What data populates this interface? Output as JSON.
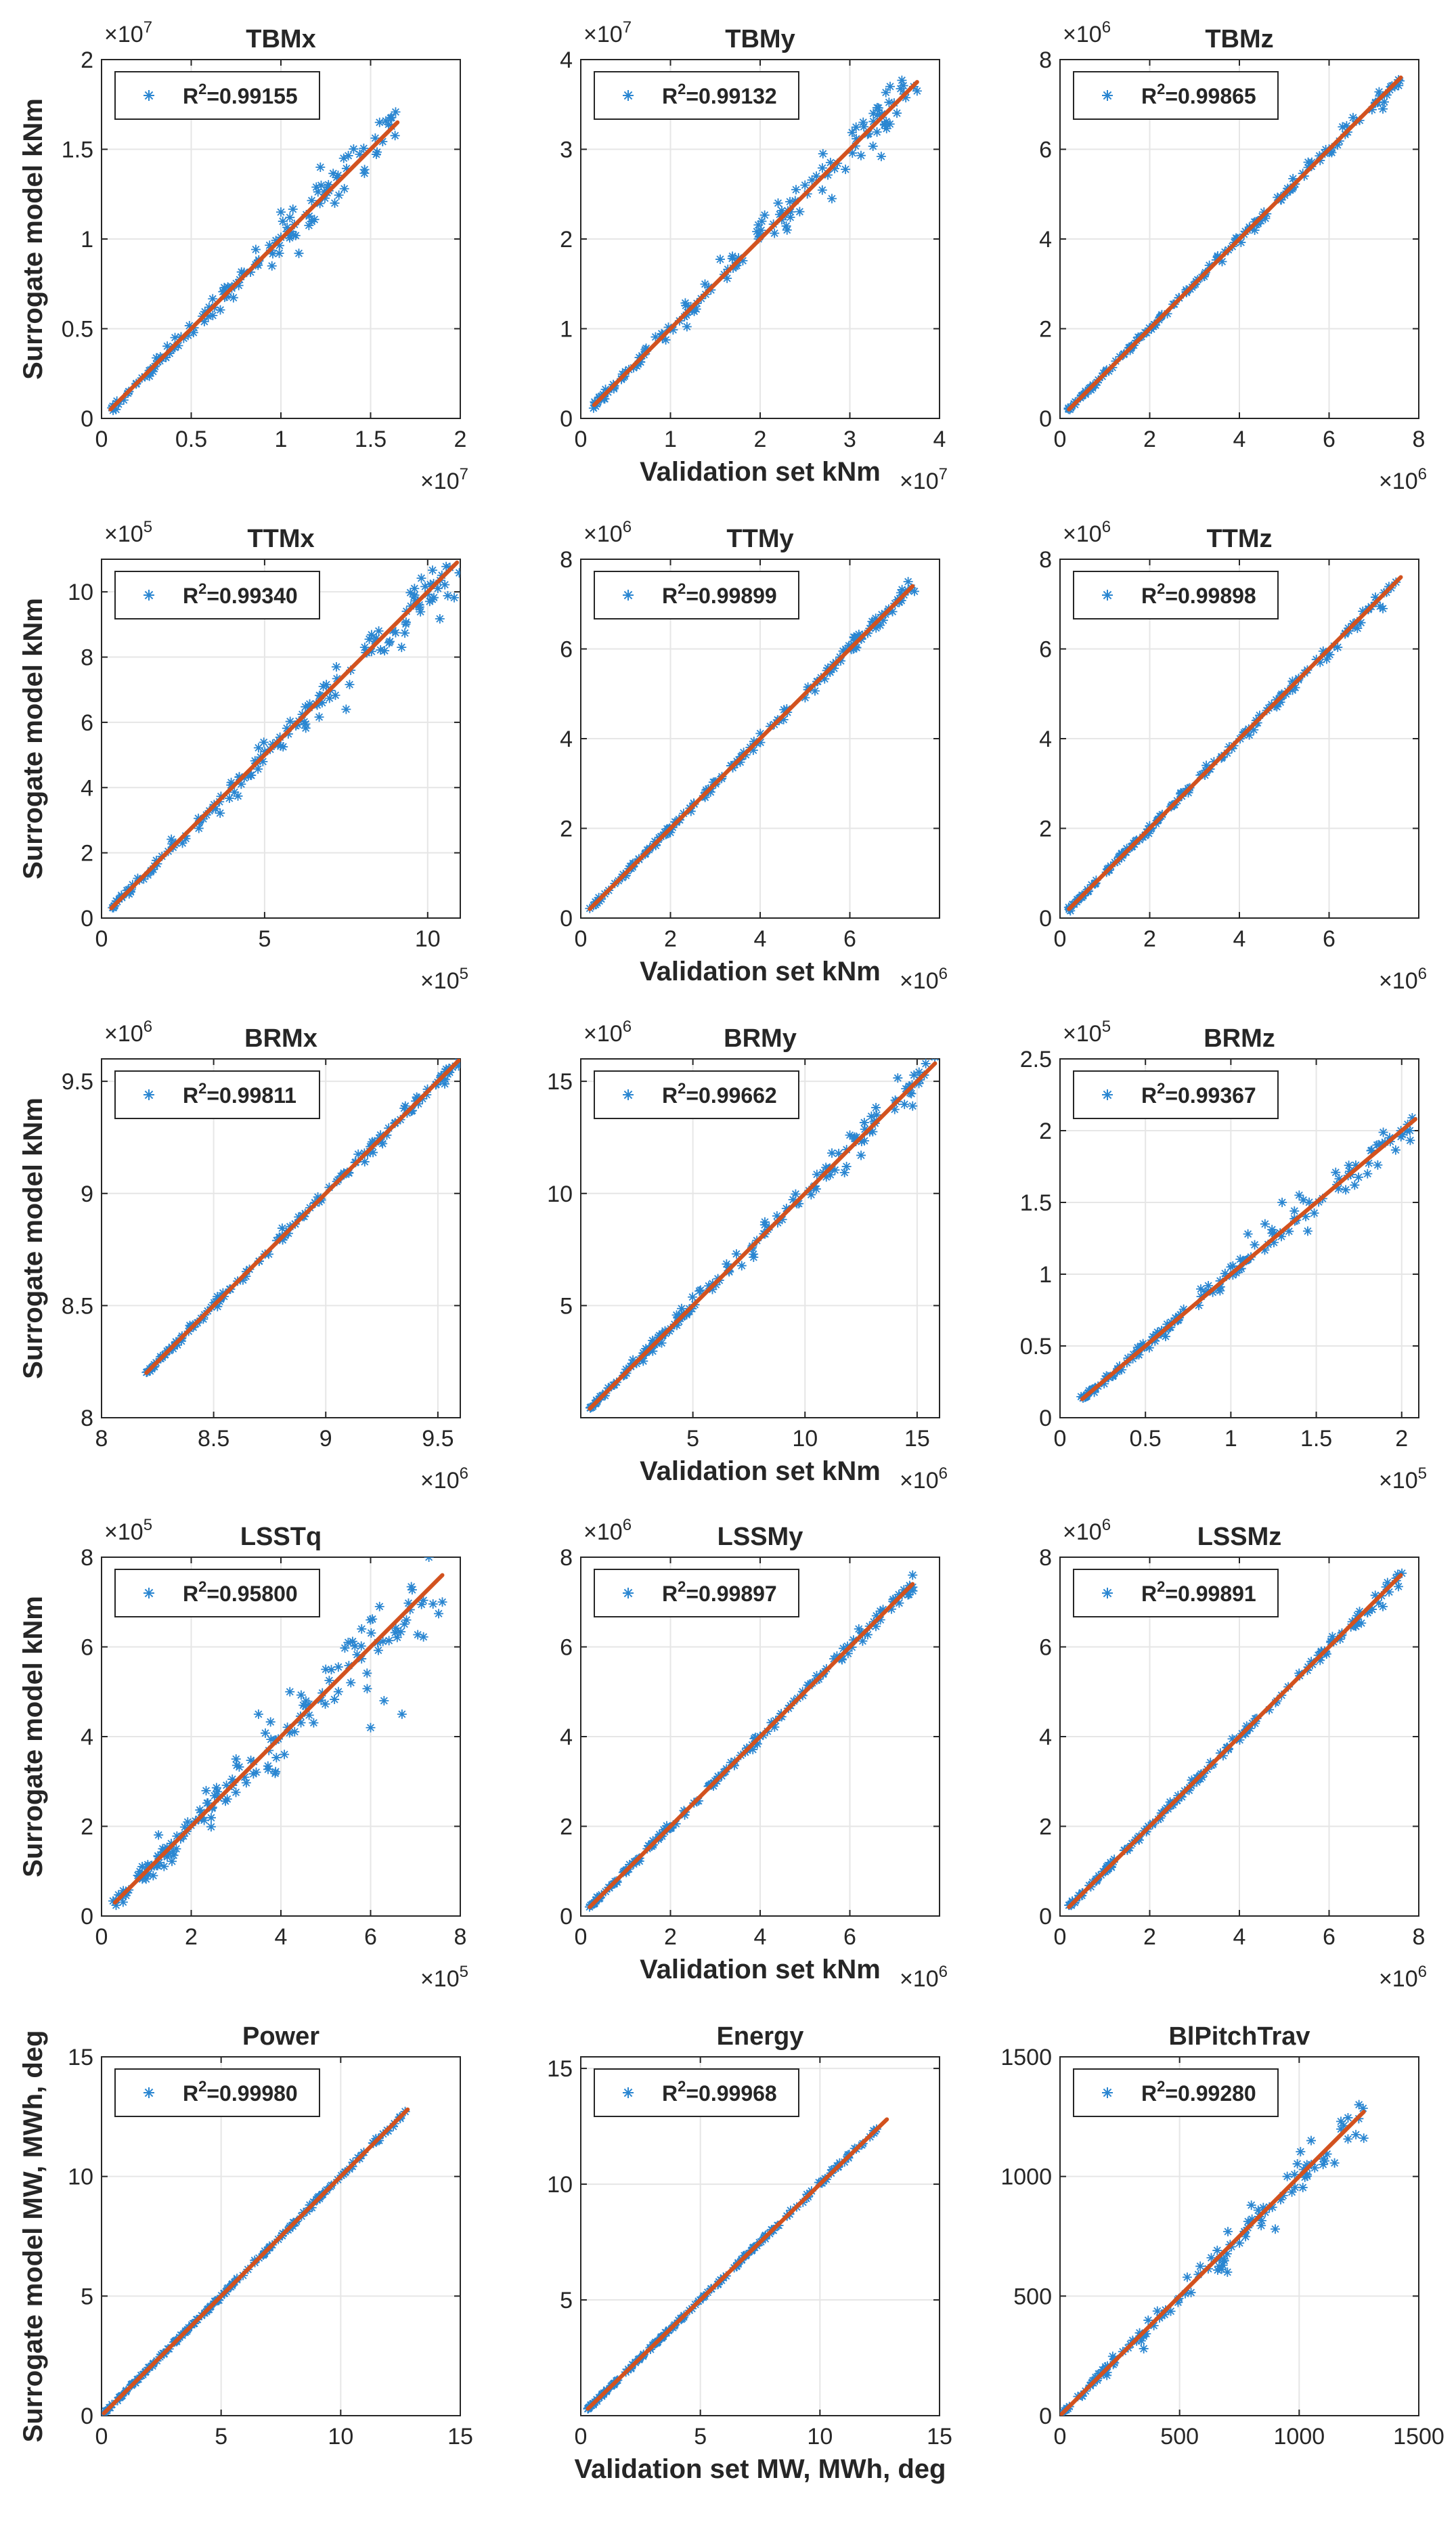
{
  "figure": {
    "description_labels": true
  },
  "colors": {
    "points": "#2a86d1",
    "fit_line": "#d2521f",
    "grid": "#e6e6e6",
    "axes": "#262626"
  },
  "chart_data": [
    {
      "type": "scatter",
      "title": "TBMx",
      "ylabel": "Surrogate model kNm",
      "xlabel": "",
      "xlim": [
        0,
        2
      ],
      "ylim": [
        0,
        2
      ],
      "xticks": [
        0,
        0.5,
        1,
        1.5,
        2
      ],
      "yticks": [
        0,
        0.5,
        1,
        1.5,
        2
      ],
      "xtick_labels": [
        "0",
        "0.5",
        "1",
        "1.5",
        "2"
      ],
      "ytick_labels": [
        "0",
        "0.5",
        "1",
        "1.5",
        "2"
      ],
      "x_exponent": "7",
      "y_exponent": "7",
      "legend": "R",
      "legend_sup": "2",
      "legend_value": "=0.99155",
      "fit": [
        0.05,
        1.65
      ],
      "samples": 130,
      "spread_low": 0.012,
      "spread_high": 0.06,
      "outliers": [
        [
          1.0,
          1.15
        ],
        [
          1.05,
          1.12
        ],
        [
          1.22,
          1.4
        ],
        [
          1.35,
          1.45
        ],
        [
          1.55,
          1.65
        ],
        [
          0.95,
          0.85
        ],
        [
          1.1,
          0.92
        ],
        [
          1.3,
          1.2
        ]
      ]
    },
    {
      "type": "scatter",
      "title": "TBMy",
      "ylabel": "",
      "xlabel": "Validation set kNm",
      "xlim": [
        0,
        4
      ],
      "ylim": [
        0,
        4
      ],
      "xticks": [
        0,
        1,
        2,
        3,
        4
      ],
      "yticks": [
        0,
        1,
        2,
        3,
        4
      ],
      "xtick_labels": [
        "0",
        "1",
        "2",
        "3",
        "4"
      ],
      "ytick_labels": [
        "0",
        "1",
        "2",
        "3",
        "4"
      ],
      "x_exponent": "7",
      "y_exponent": "7",
      "legend": "R",
      "legend_sup": "2",
      "legend_value": "=0.99132",
      "fit": [
        0.15,
        3.75
      ],
      "samples": 140,
      "spread_low": 0.015,
      "spread_high": 0.12,
      "outliers": [
        [
          2.3,
          2.1
        ],
        [
          2.4,
          2.55
        ],
        [
          2.8,
          2.45
        ],
        [
          2.7,
          2.95
        ],
        [
          3.35,
          2.92
        ],
        [
          3.75,
          3.65
        ],
        [
          2.2,
          2.4
        ],
        [
          2.5,
          2.6
        ]
      ]
    },
    {
      "type": "scatter",
      "title": "TBMz",
      "ylabel": "",
      "xlabel": "",
      "xlim": [
        0,
        8
      ],
      "ylim": [
        0,
        8
      ],
      "xticks": [
        0,
        2,
        4,
        6,
        8
      ],
      "yticks": [
        0,
        2,
        4,
        6,
        8
      ],
      "xtick_labels": [
        "0",
        "2",
        "4",
        "6",
        "8"
      ],
      "ytick_labels": [
        "0",
        "2",
        "4",
        "6",
        "8"
      ],
      "x_exponent": "6",
      "y_exponent": "6",
      "legend": "R",
      "legend_sup": "2",
      "legend_value": "=0.99865",
      "fit": [
        0.2,
        7.6
      ],
      "samples": 160,
      "spread_low": 0.02,
      "spread_high": 0.08,
      "outliers": [
        [
          7.2,
          6.9
        ],
        [
          5.8,
          5.75
        ],
        [
          6.3,
          6.5
        ]
      ]
    },
    {
      "type": "scatter",
      "title": "TTMx",
      "ylabel": "Surrogate model kNm",
      "xlabel": "",
      "xlim": [
        0,
        11
      ],
      "ylim": [
        0,
        11
      ],
      "xticks": [
        0,
        5,
        10
      ],
      "yticks": [
        0,
        2,
        4,
        6,
        8,
        10
      ],
      "xtick_labels": [
        "0",
        "5",
        "10"
      ],
      "ytick_labels": [
        "0",
        "2",
        "4",
        "6",
        "8",
        "10"
      ],
      "x_exponent": "5",
      "y_exponent": "5",
      "legend": "R",
      "legend_sup": "2",
      "legend_value": "=0.99340",
      "fit": [
        0.3,
        10.9
      ],
      "samples": 150,
      "spread_low": 0.05,
      "spread_high": 0.35,
      "outliers": [
        [
          9.2,
          8.3
        ],
        [
          7.2,
          7.7
        ],
        [
          8.5,
          8.8
        ],
        [
          7.5,
          6.4
        ],
        [
          9.6,
          9.9
        ],
        [
          6.8,
          7.1
        ]
      ]
    },
    {
      "type": "scatter",
      "title": "TTMy",
      "ylabel": "",
      "xlabel": "Validation set kNm",
      "xlim": [
        0,
        8
      ],
      "ylim": [
        0,
        8
      ],
      "xticks": [
        0,
        2,
        4,
        6
      ],
      "yticks": [
        0,
        2,
        4,
        6,
        8
      ],
      "xtick_labels": [
        "0",
        "2",
        "4",
        "6"
      ],
      "ytick_labels": [
        "0",
        "2",
        "4",
        "6",
        "8"
      ],
      "x_exponent": "6",
      "y_exponent": "6",
      "legend": "R",
      "legend_sup": "2",
      "legend_value": "=0.99899",
      "fit": [
        0.2,
        7.4
      ],
      "samples": 160,
      "spread_low": 0.02,
      "spread_high": 0.08,
      "outliers": [
        [
          7.3,
          7.5
        ],
        [
          6.1,
          6.25
        ]
      ]
    },
    {
      "type": "scatter",
      "title": "TTMz",
      "ylabel": "",
      "xlabel": "",
      "xlim": [
        0,
        8
      ],
      "ylim": [
        0,
        8
      ],
      "xticks": [
        0,
        2,
        4,
        6
      ],
      "yticks": [
        0,
        2,
        4,
        6,
        8
      ],
      "xtick_labels": [
        "0",
        "2",
        "4",
        "6"
      ],
      "ytick_labels": [
        "0",
        "2",
        "4",
        "6",
        "8"
      ],
      "x_exponent": "6",
      "y_exponent": "6",
      "legend": "R",
      "legend_sup": "2",
      "legend_value": "=0.99898",
      "fit": [
        0.2,
        7.6
      ],
      "samples": 160,
      "spread_low": 0.02,
      "spread_high": 0.08,
      "outliers": [
        [
          7.2,
          6.9
        ],
        [
          5.8,
          5.7
        ]
      ]
    },
    {
      "type": "scatter",
      "title": "BRMx",
      "ylabel": "Surrogate model kNm",
      "xlabel": "",
      "xlim": [
        8,
        9.6
      ],
      "ylim": [
        8,
        9.6
      ],
      "xticks": [
        8,
        8.5,
        9,
        9.5
      ],
      "yticks": [
        8,
        8.5,
        9,
        9.5
      ],
      "xtick_labels": [
        "8",
        "8.5",
        "9",
        "9.5"
      ],
      "ytick_labels": [
        "8",
        "8.5",
        "9",
        "9.5"
      ],
      "x_exponent": "6",
      "y_exponent": "6",
      "legend": "R",
      "legend_sup": "2",
      "legend_value": "=0.99811",
      "fit": [
        8.2,
        9.62
      ],
      "samples": 150,
      "spread_low": 0.006,
      "spread_high": 0.015,
      "outliers": [
        [
          9.45,
          9.44
        ],
        [
          9.35,
          9.38
        ]
      ]
    },
    {
      "type": "scatter",
      "title": "BRMy",
      "ylabel": "",
      "xlabel": "Validation set kNm",
      "xlim": [
        0,
        16
      ],
      "ylim": [
        0,
        16
      ],
      "xticks": [
        5,
        10,
        15
      ],
      "yticks": [
        5,
        10,
        15
      ],
      "xtick_labels": [
        "5",
        "10",
        "15"
      ],
      "ytick_labels": [
        "5",
        "10",
        "15"
      ],
      "x_exponent": "6",
      "y_exponent": "6",
      "legend": "R",
      "legend_sup": "2",
      "legend_value": "=0.99662",
      "fit": [
        0.4,
        15.8
      ],
      "samples": 160,
      "spread_low": 0.05,
      "spread_high": 0.35,
      "outliers": [
        [
          12.5,
          11.7
        ],
        [
          13.2,
          13.5
        ],
        [
          12.0,
          12.6
        ],
        [
          14.8,
          13.9
        ],
        [
          11.2,
          11.8
        ],
        [
          10.5,
          10.2
        ]
      ]
    },
    {
      "type": "scatter",
      "title": "BRMz",
      "ylabel": "",
      "xlabel": "",
      "xlim": [
        0,
        2.1
      ],
      "ylim": [
        0,
        2.5
      ],
      "xticks": [
        0,
        0.5,
        1,
        1.5,
        2
      ],
      "yticks": [
        0,
        0.5,
        1,
        1.5,
        2,
        2.5
      ],
      "xtick_labels": [
        "0",
        "0.5",
        "1",
        "1.5",
        "2"
      ],
      "ytick_labels": [
        "0",
        "0.5",
        "1",
        "1.5",
        "2",
        "2.5"
      ],
      "x_exponent": "5",
      "y_exponent": "5",
      "legend": "R",
      "legend_sup": "2",
      "legend_value": "=0.99367",
      "fit": [
        0.13,
        2.08
      ],
      "samples": 150,
      "spread_low": 0.008,
      "spread_high": 0.05,
      "outliers": [
        [
          1.1,
          1.28
        ],
        [
          1.2,
          1.35
        ],
        [
          1.3,
          1.5
        ],
        [
          1.45,
          1.3
        ],
        [
          1.4,
          1.55
        ],
        [
          1.8,
          1.7
        ],
        [
          1.0,
          1.05
        ]
      ]
    },
    {
      "type": "scatter",
      "title": "LSSTq",
      "ylabel": "Surrogate model kNm",
      "xlabel": "",
      "xlim": [
        0,
        8
      ],
      "ylim": [
        0,
        8
      ],
      "xticks": [
        0,
        2,
        4,
        6,
        8
      ],
      "yticks": [
        0,
        2,
        4,
        6,
        8
      ],
      "xtick_labels": [
        "0",
        "2",
        "4",
        "6",
        "8"
      ],
      "ytick_labels": [
        "0",
        "2",
        "4",
        "6",
        "8"
      ],
      "x_exponent": "5",
      "y_exponent": "5",
      "legend": "R",
      "legend_sup": "2",
      "legend_value": "=0.95800",
      "fit": [
        0.3,
        7.6
      ],
      "samples": 150,
      "spread_low": 0.08,
      "spread_high": 0.45,
      "outliers": [
        [
          7.3,
          8.0
        ],
        [
          7.6,
          7.0
        ],
        [
          6.0,
          4.2
        ],
        [
          6.7,
          4.5
        ],
        [
          6.3,
          4.8
        ],
        [
          6.2,
          6.9
        ],
        [
          5.8,
          6.4
        ],
        [
          5.5,
          6.1
        ],
        [
          5.0,
          5.5
        ],
        [
          4.5,
          4.7
        ],
        [
          4.2,
          5.0
        ],
        [
          3.5,
          4.5
        ],
        [
          3.0,
          3.5
        ],
        [
          6.8,
          6.6
        ]
      ]
    },
    {
      "type": "scatter",
      "title": "LSSMy",
      "ylabel": "",
      "xlabel": "Validation set kNm",
      "xlim": [
        0,
        8
      ],
      "ylim": [
        0,
        8
      ],
      "xticks": [
        0,
        2,
        4,
        6
      ],
      "yticks": [
        0,
        2,
        4,
        6,
        8
      ],
      "xtick_labels": [
        "0",
        "2",
        "4",
        "6"
      ],
      "ytick_labels": [
        "0",
        "2",
        "4",
        "6",
        "8"
      ],
      "x_exponent": "6",
      "y_exponent": "6",
      "legend": "R",
      "legend_sup": "2",
      "legend_value": "=0.99897",
      "fit": [
        0.2,
        7.4
      ],
      "samples": 160,
      "spread_low": 0.02,
      "spread_high": 0.08,
      "outliers": [
        [
          7.4,
          7.6
        ],
        [
          6.2,
          6.4
        ]
      ]
    },
    {
      "type": "scatter",
      "title": "LSSMz",
      "ylabel": "",
      "xlabel": "",
      "xlim": [
        0,
        8
      ],
      "ylim": [
        0,
        8
      ],
      "xticks": [
        0,
        2,
        4,
        6,
        8
      ],
      "yticks": [
        0,
        2,
        4,
        6,
        8
      ],
      "xtick_labels": [
        "0",
        "2",
        "4",
        "6",
        "8"
      ],
      "ytick_labels": [
        "0",
        "2",
        "4",
        "6",
        "8"
      ],
      "x_exponent": "6",
      "y_exponent": "6",
      "legend": "R",
      "legend_sup": "2",
      "legend_value": "=0.99891",
      "fit": [
        0.2,
        7.6
      ],
      "samples": 160,
      "spread_low": 0.02,
      "spread_high": 0.08,
      "outliers": [
        [
          7.2,
          6.9
        ],
        [
          5.8,
          5.7
        ]
      ]
    },
    {
      "type": "scatter",
      "title": "Power",
      "ylabel": "Surrogate model MW, MWh, deg",
      "xlabel": "",
      "xlim": [
        0,
        15
      ],
      "ylim": [
        0,
        15
      ],
      "xticks": [
        0,
        5,
        10,
        15
      ],
      "yticks": [
        0,
        5,
        10,
        15
      ],
      "xtick_labels": [
        "0",
        "5",
        "10",
        "15"
      ],
      "ytick_labels": [
        "0",
        "5",
        "10",
        "15"
      ],
      "x_exponent": "",
      "y_exponent": "",
      "legend": "R",
      "legend_sup": "2",
      "legend_value": "=0.99980",
      "fit": [
        0.1,
        12.8
      ],
      "samples": 170,
      "spread_low": 0.02,
      "spread_high": 0.05,
      "outliers": []
    },
    {
      "type": "scatter",
      "title": "Energy",
      "ylabel": "",
      "xlabel": "Validation set MW, MWh, deg",
      "xlim": [
        0,
        15
      ],
      "ylim": [
        0,
        15.5
      ],
      "xticks": [
        0,
        5,
        10,
        15
      ],
      "yticks": [
        5,
        10,
        15
      ],
      "xtick_labels": [
        "0",
        "5",
        "10",
        "15"
      ],
      "ytick_labels": [
        "5",
        "10",
        "15"
      ],
      "x_exponent": "",
      "y_exponent": "",
      "legend": "R",
      "legend_sup": "2",
      "legend_value": "=0.99968",
      "fit": [
        0.3,
        12.8
      ],
      "samples": 170,
      "spread_low": 0.02,
      "spread_high": 0.05,
      "outliers": []
    },
    {
      "type": "scatter",
      "title": "BlPitchTrav",
      "ylabel": "",
      "xlabel": "",
      "xlim": [
        0,
        1500
      ],
      "ylim": [
        0,
        1500
      ],
      "xticks": [
        0,
        500,
        1000,
        1500
      ],
      "yticks": [
        0,
        500,
        1000,
        1500
      ],
      "xtick_labels": [
        "0",
        "500",
        "1000",
        "1500"
      ],
      "ytick_labels": [
        "0",
        "500",
        "1000",
        "1500"
      ],
      "x_exponent": "",
      "y_exponent": "",
      "legend": "R",
      "legend_sup": "2",
      "legend_value": "=0.99280",
      "fit": [
        0,
        1270
      ],
      "samples": 120,
      "spread_low": 3,
      "spread_high": 45,
      "outliers": [
        [
          1250,
          1300
        ],
        [
          1270,
          1160
        ],
        [
          1100,
          1050
        ],
        [
          950,
          1000
        ],
        [
          900,
          780
        ],
        [
          850,
          870
        ],
        [
          800,
          880
        ],
        [
          350,
          280
        ],
        [
          700,
          600
        ],
        [
          1050,
          1150
        ]
      ]
    }
  ]
}
